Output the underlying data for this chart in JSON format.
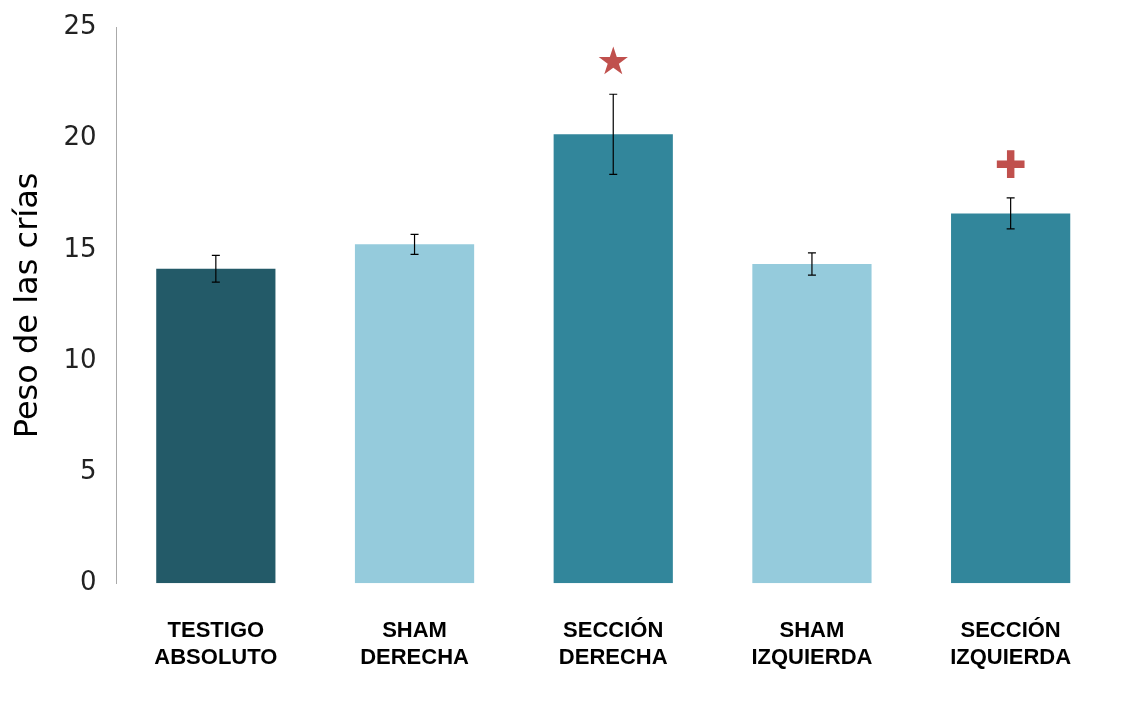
{
  "chart_data": {
    "type": "bar",
    "ylabel": "Peso de las crías",
    "categories": [
      "TESTIGO ABSOLUTO",
      "SHAM DERECHA",
      "SECCIÓN DERECHA",
      "SHAM IZQUIERDA",
      "SECCIÓN IZQUIERDA"
    ],
    "values": [
      14.15,
      15.25,
      20.2,
      14.36,
      16.64
    ],
    "colors": [
      "#235a68",
      "#95cbdc",
      "#32869b",
      "#95cbdc",
      "#32869b"
    ],
    "errors": [
      0.6,
      0.45,
      1.8,
      0.5,
      0.7
    ],
    "ylim": [
      0,
      25
    ],
    "yticks": [
      0,
      5,
      10,
      15,
      20,
      25
    ],
    "grid": false,
    "annotations": [
      "★",
      "✚"
    ]
  }
}
